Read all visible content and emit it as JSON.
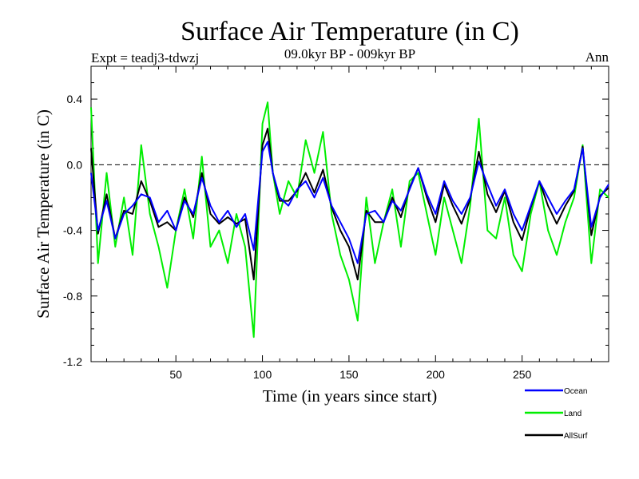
{
  "chart_data": {
    "type": "line",
    "title": "Surface Air Temperature (in C)",
    "subtitle_left": "Expt = teadj3-tdwzj",
    "subtitle_center": "09.0kyr BP - 009kyr BP",
    "subtitle_right": "Ann",
    "xlabel": "Time (in years since start)",
    "ylabel": "Surface Air Temperature (in C)",
    "xlim": [
      1,
      300
    ],
    "ylim": [
      -1.2,
      0.6
    ],
    "xticks": [
      50,
      100,
      150,
      200,
      250
    ],
    "xtick_labels": [
      "50",
      "100",
      "150",
      "200",
      "250"
    ],
    "yticks": [
      -1.2,
      -0.8,
      -0.4,
      0.0,
      0.4
    ],
    "ytick_labels": [
      "-1.2",
      "-0.8",
      "-0.4",
      "0.0",
      "0.4"
    ],
    "reference_line": 0.0,
    "legend_position": "bottom-right",
    "x": [
      1,
      5,
      10,
      15,
      20,
      25,
      30,
      35,
      40,
      45,
      50,
      55,
      60,
      65,
      70,
      75,
      80,
      85,
      90,
      95,
      100,
      103,
      106,
      110,
      115,
      120,
      125,
      130,
      135,
      140,
      145,
      150,
      155,
      160,
      165,
      170,
      175,
      180,
      185,
      190,
      195,
      200,
      205,
      210,
      215,
      220,
      225,
      230,
      235,
      240,
      245,
      250,
      255,
      260,
      265,
      270,
      275,
      280,
      285,
      290,
      295,
      300
    ],
    "series": [
      {
        "name": "Ocean",
        "color": "#0000ff",
        "values": [
          -0.05,
          -0.4,
          -0.22,
          -0.45,
          -0.3,
          -0.25,
          -0.18,
          -0.2,
          -0.35,
          -0.28,
          -0.4,
          -0.22,
          -0.3,
          -0.08,
          -0.25,
          -0.35,
          -0.28,
          -0.38,
          -0.3,
          -0.52,
          0.08,
          0.14,
          -0.05,
          -0.2,
          -0.25,
          -0.15,
          -0.1,
          -0.2,
          -0.08,
          -0.25,
          -0.35,
          -0.45,
          -0.6,
          -0.3,
          -0.28,
          -0.35,
          -0.22,
          -0.28,
          -0.15,
          -0.02,
          -0.18,
          -0.3,
          -0.1,
          -0.22,
          -0.3,
          -0.2,
          0.02,
          -0.12,
          -0.25,
          -0.15,
          -0.3,
          -0.4,
          -0.25,
          -0.1,
          -0.2,
          -0.3,
          -0.22,
          -0.15,
          0.1,
          -0.38,
          -0.2,
          -0.12
        ]
      },
      {
        "name": "Land",
        "color": "#00ee00",
        "values": [
          0.35,
          -0.6,
          -0.05,
          -0.5,
          -0.2,
          -0.55,
          0.12,
          -0.3,
          -0.5,
          -0.75,
          -0.4,
          -0.15,
          -0.45,
          0.05,
          -0.5,
          -0.4,
          -0.6,
          -0.3,
          -0.5,
          -1.05,
          0.25,
          0.38,
          -0.05,
          -0.3,
          -0.1,
          -0.2,
          0.15,
          -0.05,
          0.2,
          -0.3,
          -0.55,
          -0.7,
          -0.95,
          -0.2,
          -0.6,
          -0.35,
          -0.15,
          -0.5,
          -0.1,
          -0.05,
          -0.3,
          -0.55,
          -0.2,
          -0.4,
          -0.6,
          -0.25,
          0.28,
          -0.4,
          -0.45,
          -0.2,
          -0.55,
          -0.65,
          -0.3,
          -0.1,
          -0.4,
          -0.55,
          -0.35,
          -0.2,
          0.12,
          -0.6,
          -0.15,
          -0.2
        ]
      },
      {
        "name": "AllSurf",
        "color": "#000000",
        "values": [
          0.1,
          -0.42,
          -0.18,
          -0.45,
          -0.28,
          -0.3,
          -0.1,
          -0.22,
          -0.38,
          -0.35,
          -0.4,
          -0.2,
          -0.32,
          -0.05,
          -0.3,
          -0.36,
          -0.32,
          -0.36,
          -0.33,
          -0.7,
          0.12,
          0.22,
          -0.05,
          -0.22,
          -0.22,
          -0.16,
          -0.05,
          -0.17,
          -0.03,
          -0.26,
          -0.4,
          -0.5,
          -0.7,
          -0.28,
          -0.35,
          -0.35,
          -0.2,
          -0.32,
          -0.14,
          -0.02,
          -0.2,
          -0.35,
          -0.12,
          -0.25,
          -0.36,
          -0.21,
          0.08,
          -0.18,
          -0.29,
          -0.16,
          -0.35,
          -0.46,
          -0.26,
          -0.1,
          -0.25,
          -0.36,
          -0.25,
          -0.16,
          0.11,
          -0.43,
          -0.19,
          -0.14
        ]
      }
    ]
  }
}
